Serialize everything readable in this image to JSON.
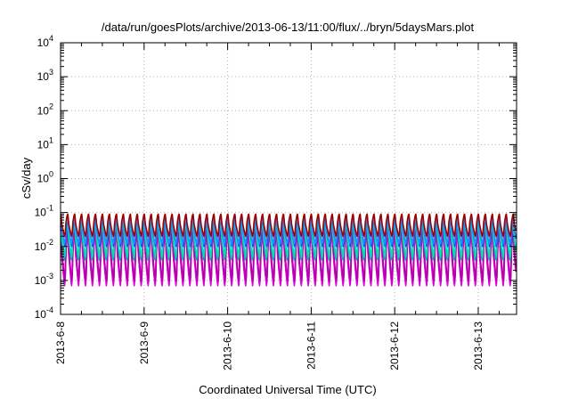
{
  "chart_data": {
    "type": "line",
    "title": "/data/run/goesPlots/archive/2013-06-13/11:00/flux/../bryn/5daysMars.plot",
    "xlabel": "Coordinated Universal Time (UTC)",
    "ylabel": "cSv/day",
    "x_tick_labels": [
      "2013-6-8",
      "2013-6-9",
      "2013-6-10",
      "2013-6-11",
      "2013-6-12",
      "2013-6-13"
    ],
    "x_range": [
      "2013-06-08",
      "2013-06-13T11:00"
    ],
    "y_scale": "log",
    "y_range": [
      0.0001,
      10000
    ],
    "y_ticks": [
      {
        "base": "10",
        "exp": "4"
      },
      {
        "base": "10",
        "exp": "3"
      },
      {
        "base": "10",
        "exp": "2"
      },
      {
        "base": "10",
        "exp": "1"
      },
      {
        "base": "10",
        "exp": "0"
      },
      {
        "base": "10",
        "exp": "-1"
      },
      {
        "base": "10",
        "exp": "-2"
      },
      {
        "base": "10",
        "exp": "-3"
      },
      {
        "base": "10",
        "exp": "-4"
      }
    ],
    "grid": true,
    "pattern": {
      "description_free": true,
      "cycles_per_day": 12,
      "series": [
        {
          "color": "#ff00ff",
          "peak": 0.04,
          "trough": 0.0008
        },
        {
          "color": "#e000e0",
          "peak": 0.03,
          "trough": 0.0007
        },
        {
          "color": "#b400a8",
          "peak": 0.035,
          "trough": 0.001
        },
        {
          "color": "#00b4b4",
          "peak": 0.05,
          "trough": 0.004
        },
        {
          "color": "#00e0b0",
          "peak": 0.06,
          "trough": 0.005
        },
        {
          "color": "#2040ff",
          "peak": 0.08,
          "trough": 0.01
        },
        {
          "color": "#1e90ff",
          "peak": 0.07,
          "trough": 0.012
        },
        {
          "color": "#a00000",
          "peak": 0.09,
          "trough": 0.02
        }
      ]
    }
  }
}
